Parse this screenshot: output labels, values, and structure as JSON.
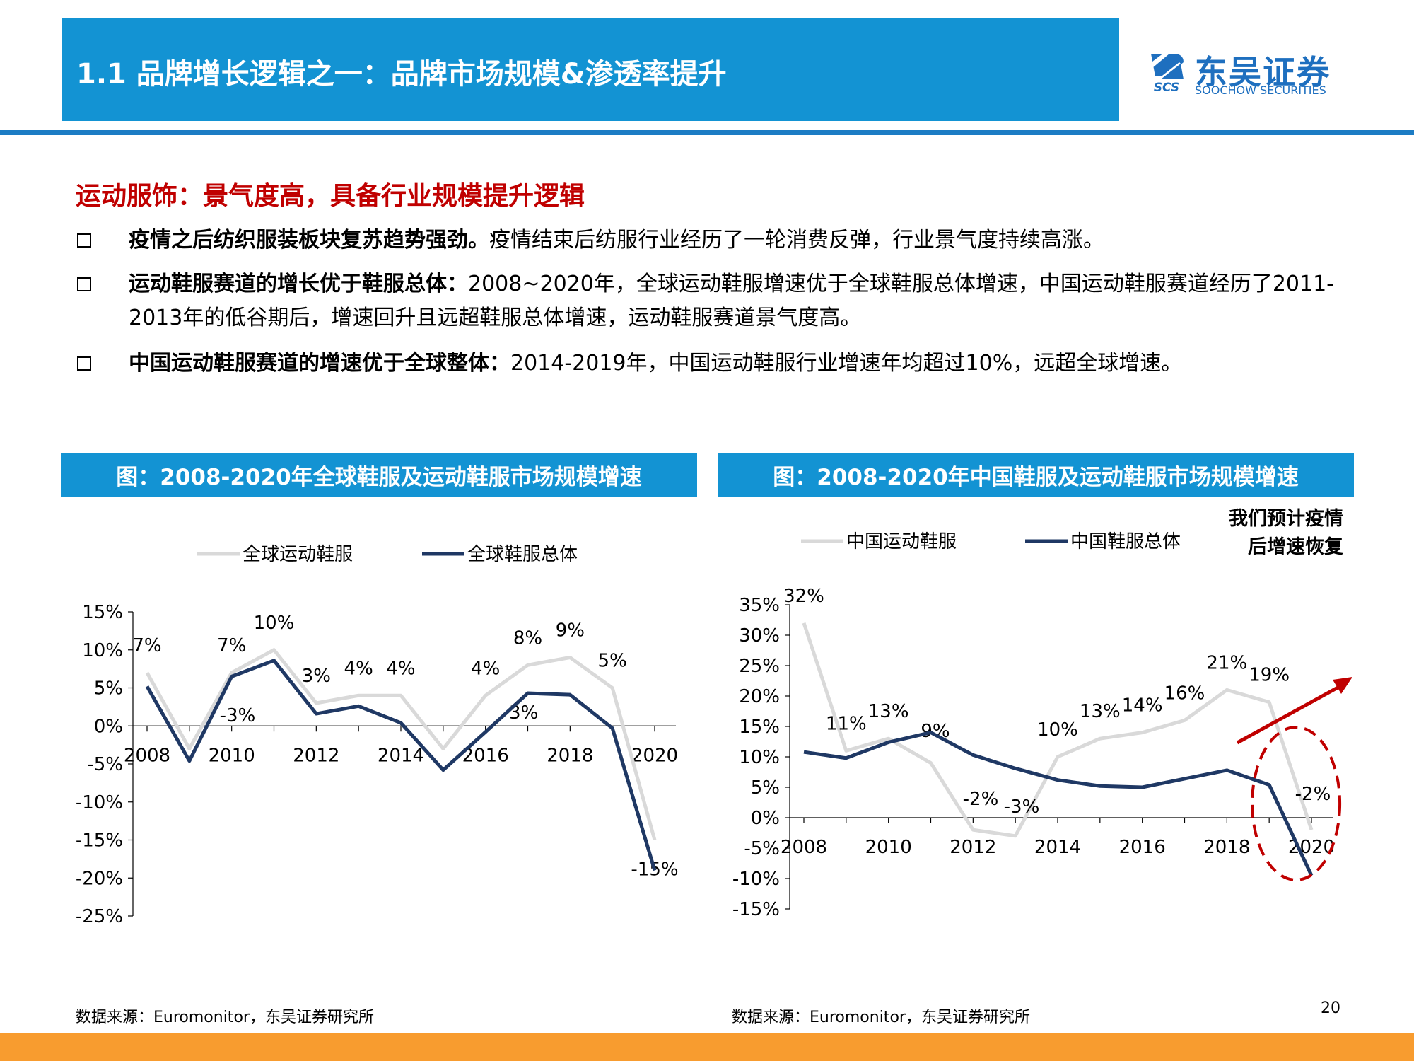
{
  "header": {
    "title": "1.1 品牌增长逻辑之一：品牌市场规模&渗透率提升",
    "logo_cn": "东吴证券",
    "logo_en": "SOOCHOW SECURITIES",
    "logo_mark_text": "SCS"
  },
  "subtitle": "运动服饰：景气度高，具备行业规模提升逻辑",
  "bullets": [
    {
      "bold": "疫情之后纺织服装板块复苏趋势强劲。",
      "text": "疫情结束后纺服行业经历了一轮消费反弹，行业景气度持续高涨。"
    },
    {
      "bold": "运动鞋服赛道的增长优于鞋服总体：",
      "text": "2008~2020年，全球运动鞋服增速优于全球鞋服总体增速，中国运动鞋服赛道经历了2011-2013年的低谷期后，增速回升且远超鞋服总体增速，运动鞋服赛道景气度高。"
    },
    {
      "bold": "中国运动鞋服赛道的增速优于全球整体：",
      "text": "2014-2019年，中国运动鞋服行业增速年均超过10%，远超全球增速。"
    }
  ],
  "note": {
    "line1": "我们预计疫情",
    "line2": "后增速恢复"
  },
  "source_left": "数据来源：Euromonitor，东吴证券研究所",
  "source_right": "数据来源：Euromonitor，东吴证券研究所",
  "page_number": "20",
  "colors": {
    "light": "#d9d9d9",
    "dark": "#1f3864",
    "accent": "#c00000",
    "header": "#1393d3",
    "footer": "#f89c2f"
  },
  "chart_data": [
    {
      "type": "line",
      "title": "图：2008-2020年全球鞋服及运动鞋服市场规模增速",
      "x": [
        2008,
        2009,
        2010,
        2011,
        2012,
        2013,
        2014,
        2015,
        2016,
        2017,
        2018,
        2019,
        2020
      ],
      "x_tick_labels": [
        "2008",
        "2010",
        "2012",
        "2014",
        "2016",
        "2018",
        "2020"
      ],
      "ylim": [
        -25,
        15
      ],
      "y_tick_labels": [
        "15%",
        "10%",
        "5%",
        "0%",
        "-5%",
        "-10%",
        "-15%",
        "-20%",
        "-25%"
      ],
      "legend_position": "top",
      "series": [
        {
          "name": "全球运动鞋服",
          "color": "#d9d9d9",
          "values": [
            7,
            -3,
            7,
            10,
            3,
            4,
            4,
            -3,
            4,
            8,
            9,
            5,
            -15
          ],
          "labels": [
            "7%",
            "-3%",
            "7%",
            "10%",
            "3%",
            "4%",
            "4%",
            "-3%",
            "4%",
            "8%",
            "9%",
            "5%",
            "-15%"
          ]
        },
        {
          "name": "全球鞋服总体",
          "color": "#1f3864",
          "values": [
            5.2,
            -4.6,
            6.5,
            8.6,
            1.6,
            2.6,
            0.4,
            -5.8,
            -0.8,
            4.3,
            4.1,
            -0.3,
            -19
          ]
        }
      ]
    },
    {
      "type": "line",
      "title": "图：2008-2020年中国鞋服及运动鞋服市场规模增速",
      "x": [
        2008,
        2009,
        2010,
        2011,
        2012,
        2013,
        2014,
        2015,
        2016,
        2017,
        2018,
        2019,
        2020
      ],
      "x_tick_labels": [
        "2008",
        "2010",
        "2012",
        "2014",
        "2016",
        "2018",
        "2020"
      ],
      "ylim": [
        -15,
        35
      ],
      "y_tick_labels": [
        "35%",
        "30%",
        "25%",
        "20%",
        "15%",
        "10%",
        "5%",
        "0%",
        "-5%",
        "-10%",
        "-15%"
      ],
      "legend_position": "top",
      "series": [
        {
          "name": "中国运动鞋服",
          "color": "#d9d9d9",
          "values": [
            32,
            11,
            13,
            9,
            -2,
            -3,
            10,
            13,
            14,
            16,
            21,
            19,
            -2
          ],
          "labels": [
            "32%",
            "11%",
            "13%",
            "9%",
            "-2%",
            "-3%",
            "10%",
            "13%",
            "14%",
            "16%",
            "21%",
            "19%",
            "-2%"
          ]
        },
        {
          "name": "中国鞋服总体",
          "color": "#1f3864",
          "values": [
            10.8,
            9.8,
            12.4,
            14,
            10.3,
            8.1,
            6.2,
            5.2,
            5,
            6.4,
            7.8,
            5.4,
            -9.5
          ]
        }
      ]
    }
  ]
}
